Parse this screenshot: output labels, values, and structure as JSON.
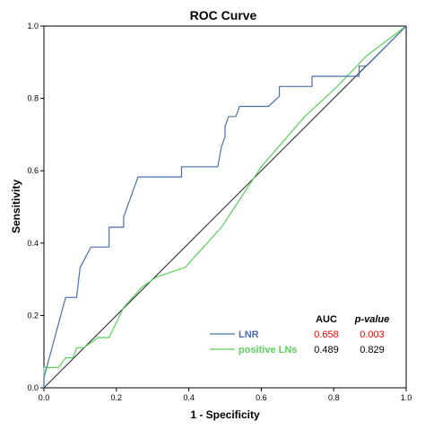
{
  "chart_data": {
    "type": "line",
    "title": "ROC Curve",
    "xlabel": "1 - Specificity",
    "ylabel": "Sensitivity",
    "xlim": [
      0,
      1
    ],
    "ylim": [
      0,
      1
    ],
    "x_ticks": [
      "0.0",
      "0.2",
      "0.4",
      "0.6",
      "0.8",
      "1.0"
    ],
    "y_ticks": [
      "0.0",
      "0.2",
      "0.4",
      "0.6",
      "0.8",
      "1.0"
    ],
    "grid": false,
    "legend_position": "bottom-right",
    "legend_headers": {
      "auc": "AUC",
      "pvalue": "p-value"
    },
    "colors": {
      "lnr": "#4a6fb0",
      "positive_lns": "#5bd25b",
      "reference": "#333333",
      "highlight": "#ff0000"
    },
    "series": [
      {
        "name": "LNR",
        "auc": "0.658",
        "pvalue": "0.003",
        "points": [
          [
            0.0,
            0.0
          ],
          [
            0.0,
            0.028
          ],
          [
            0.06,
            0.25
          ],
          [
            0.09,
            0.25
          ],
          [
            0.1,
            0.333
          ],
          [
            0.13,
            0.389
          ],
          [
            0.18,
            0.389
          ],
          [
            0.18,
            0.444
          ],
          [
            0.22,
            0.444
          ],
          [
            0.22,
            0.472
          ],
          [
            0.23,
            0.5
          ],
          [
            0.24,
            0.528
          ],
          [
            0.25,
            0.556
          ],
          [
            0.26,
            0.583
          ],
          [
            0.38,
            0.583
          ],
          [
            0.38,
            0.611
          ],
          [
            0.48,
            0.611
          ],
          [
            0.49,
            0.667
          ],
          [
            0.5,
            0.694
          ],
          [
            0.5,
            0.722
          ],
          [
            0.51,
            0.75
          ],
          [
            0.53,
            0.75
          ],
          [
            0.54,
            0.778
          ],
          [
            0.62,
            0.778
          ],
          [
            0.65,
            0.806
          ],
          [
            0.65,
            0.833
          ],
          [
            0.74,
            0.833
          ],
          [
            0.74,
            0.861
          ],
          [
            0.87,
            0.861
          ],
          [
            0.87,
            0.889
          ],
          [
            0.89,
            0.889
          ],
          [
            1.0,
            1.0
          ]
        ]
      },
      {
        "name": "positive LNs",
        "auc": "0.489",
        "pvalue": "0.829",
        "points": [
          [
            0.0,
            0.0
          ],
          [
            0.0,
            0.056
          ],
          [
            0.04,
            0.056
          ],
          [
            0.06,
            0.083
          ],
          [
            0.08,
            0.083
          ],
          [
            0.09,
            0.111
          ],
          [
            0.11,
            0.111
          ],
          [
            0.15,
            0.139
          ],
          [
            0.18,
            0.139
          ],
          [
            0.22,
            0.222
          ],
          [
            0.27,
            0.278
          ],
          [
            0.31,
            0.306
          ],
          [
            0.39,
            0.333
          ],
          [
            0.49,
            0.444
          ],
          [
            0.6,
            0.611
          ],
          [
            0.72,
            0.75
          ],
          [
            0.81,
            0.833
          ],
          [
            0.89,
            0.917
          ],
          [
            1.0,
            1.0
          ]
        ]
      },
      {
        "name": "",
        "points": [
          [
            0,
            0
          ],
          [
            1,
            1
          ]
        ]
      }
    ]
  }
}
